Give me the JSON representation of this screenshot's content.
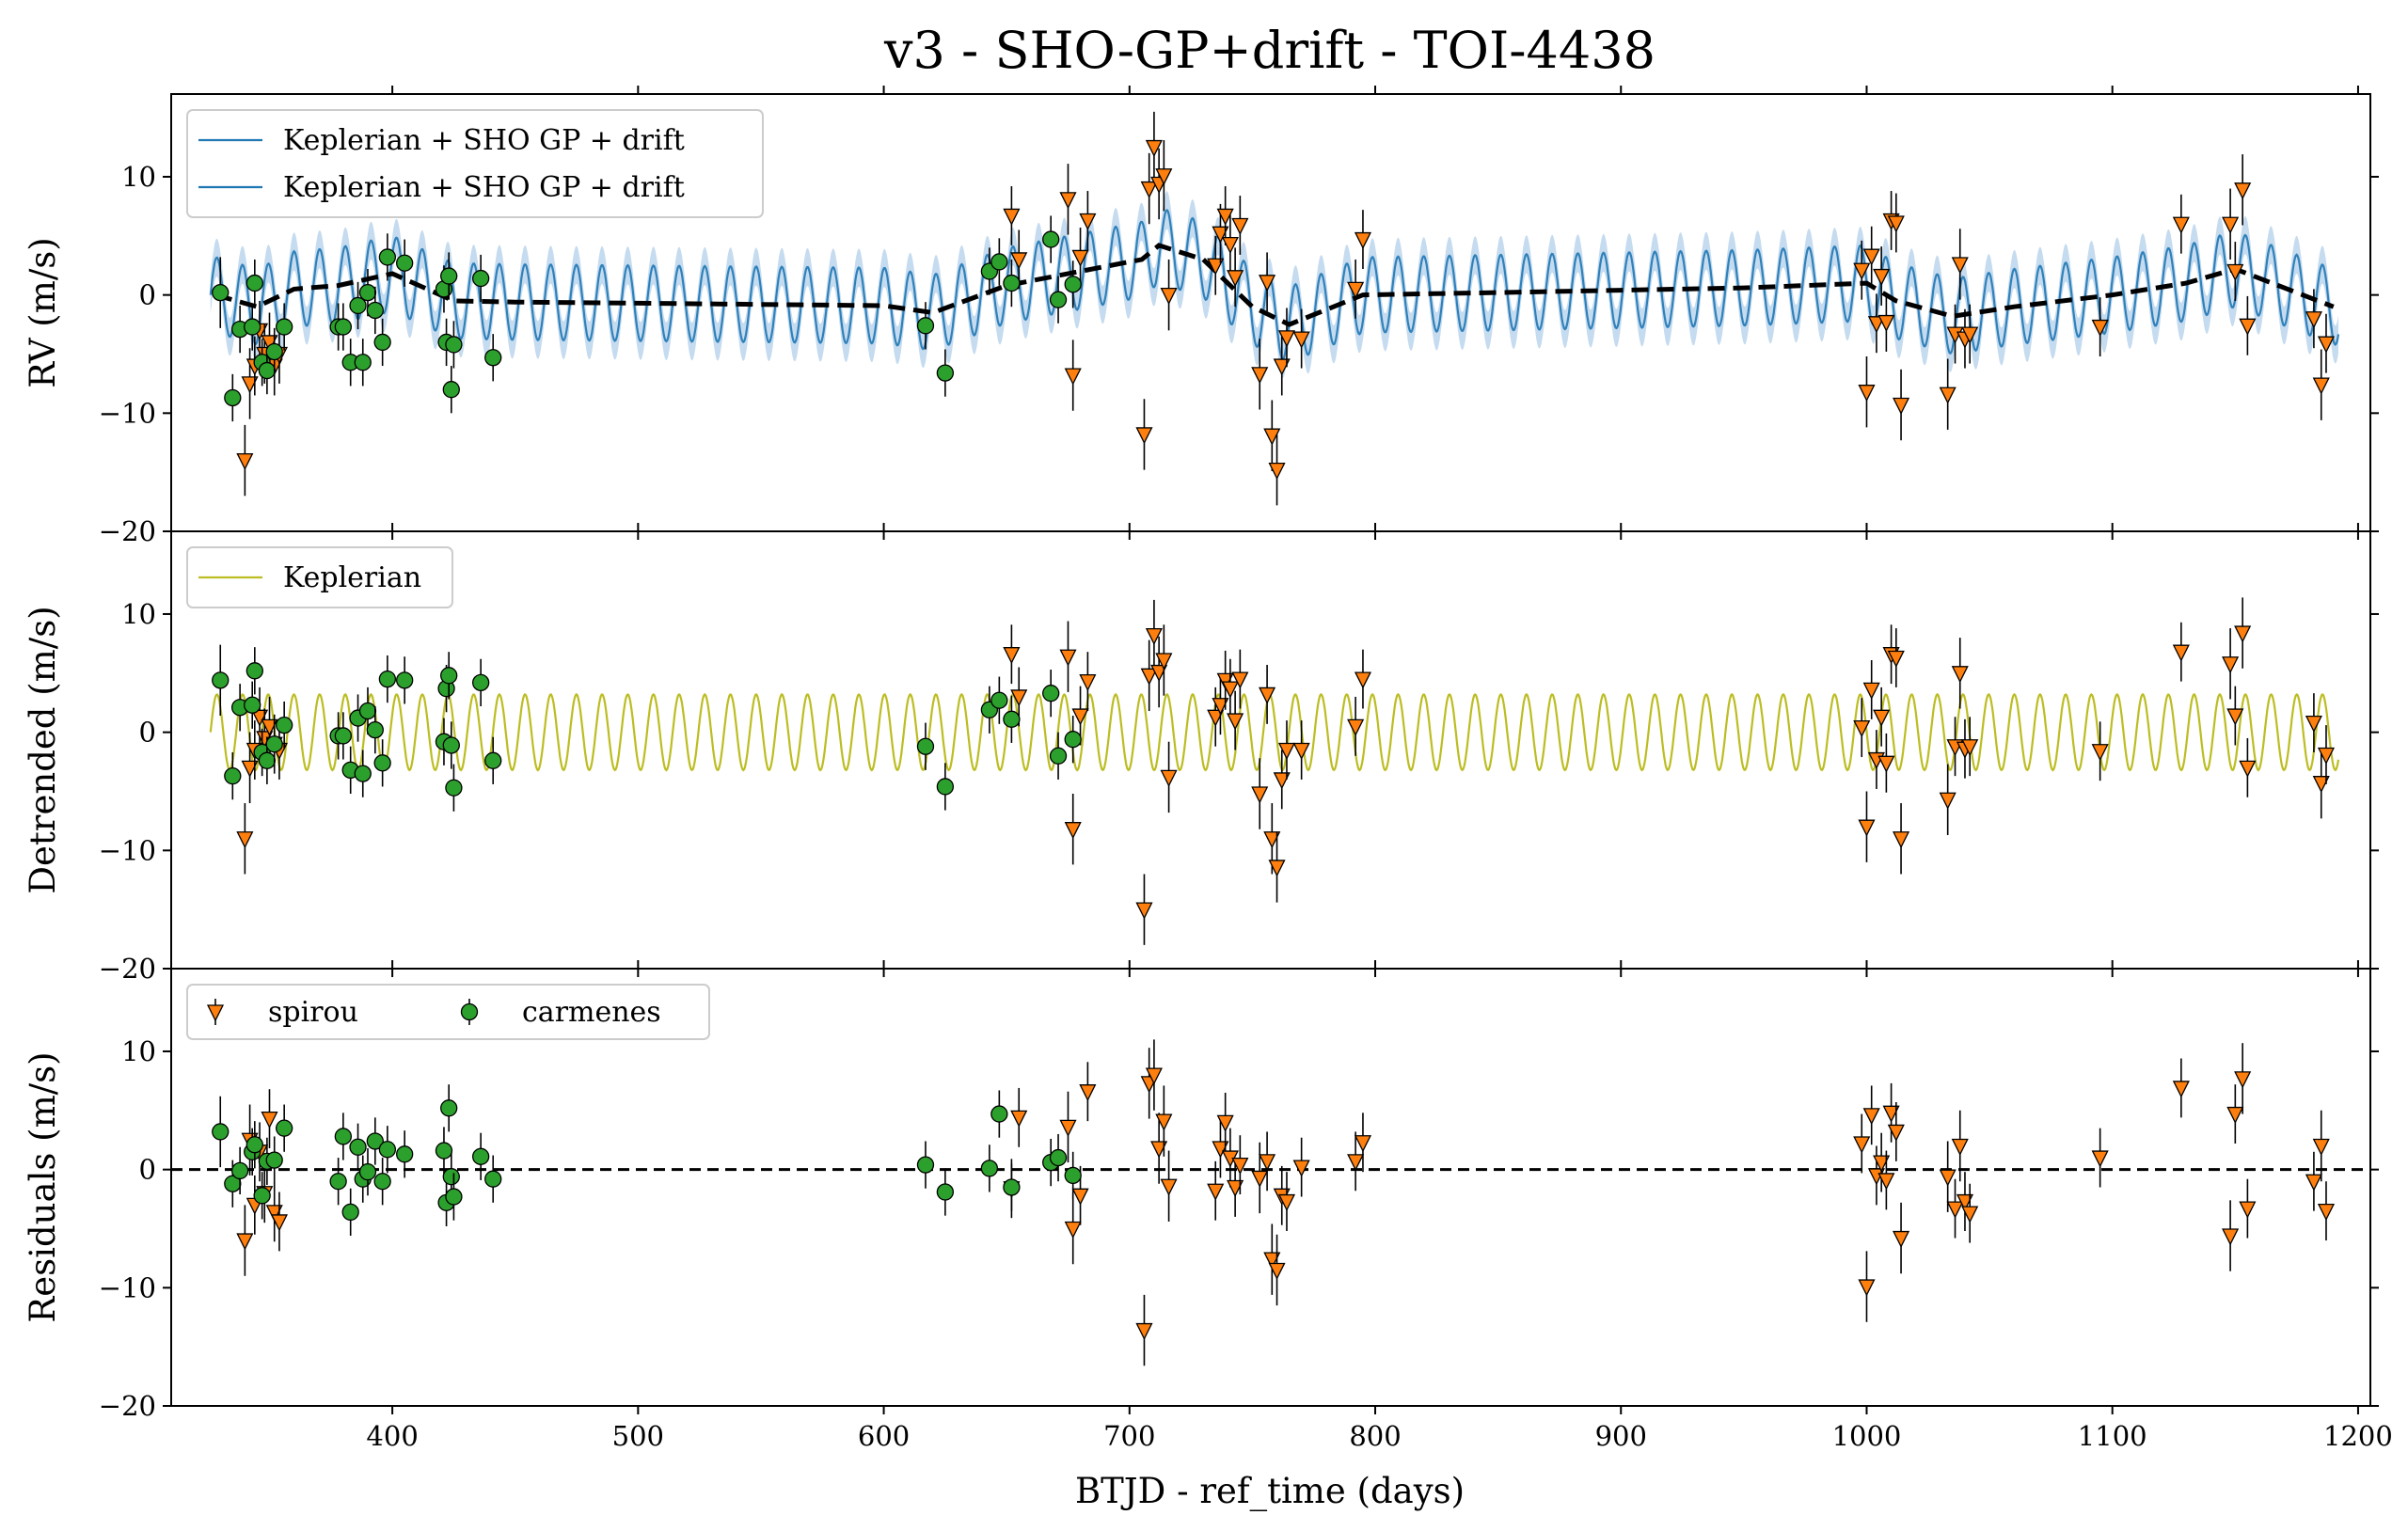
{
  "figure": {
    "title": "v3 - SHO-GP+drift - TOI-4438",
    "xlabel": "BTJD - ref_time (days)",
    "xlim": [
      310,
      1205
    ],
    "xticks": [
      400,
      500,
      600,
      700,
      800,
      900,
      1000,
      1100,
      1200
    ],
    "colors": {
      "spirou": "#ff7f0e",
      "carmenes": "#2ca02c",
      "gp_model": "#1f77b4",
      "gp_band": "#a6c8e6",
      "keplerian": "#bcbd22",
      "drift": "#000000"
    }
  },
  "chart_data": [
    {
      "type": "scatter",
      "panel": "rv",
      "ylabel": "RV (m/s)",
      "ylim": [
        -20,
        17
      ],
      "yticks": [
        -20,
        -10,
        0,
        10
      ],
      "legend": {
        "placement": "upper-left",
        "entries": [
          "Keplerian + SHO GP + drift",
          "Keplerian + SHO GP + drift"
        ]
      },
      "model_curve": {
        "period_days": 10.45,
        "amplitude": 3.2,
        "band_halfwidth": 1.6
      },
      "drift_curve": {
        "x": [
          328,
          345,
          360,
          378,
          400,
          425,
          450,
          500,
          550,
          600,
          620,
          650,
          680,
          705,
          712,
          730,
          750,
          765,
          795,
          850,
          900,
          950,
          1000,
          1012,
          1035,
          1060,
          1100,
          1130,
          1150,
          1165,
          1190
        ],
        "y": [
          0,
          -1,
          0.5,
          0.8,
          1.8,
          -0.5,
          -0.6,
          -0.7,
          -0.8,
          -0.9,
          -1.5,
          0.8,
          2.0,
          3.0,
          4.2,
          3.0,
          -1.0,
          -2.5,
          0.0,
          0.2,
          0.4,
          0.6,
          1.0,
          -0.5,
          -1.8,
          -1.0,
          0.0,
          1.0,
          2.2,
          1.0,
          -1.0
        ]
      },
      "series": [
        {
          "name": "spirou",
          "marker": "triangle-down",
          "x": [
            340,
            342,
            344,
            346,
            348,
            350,
            352,
            354,
            652,
            655,
            675,
            677,
            680,
            683,
            706,
            708,
            710,
            712,
            714,
            716,
            735,
            737,
            739,
            741,
            743,
            745,
            753,
            756,
            758,
            760,
            762,
            764,
            770,
            792,
            795,
            998,
            1000,
            1002,
            1004,
            1006,
            1008,
            1010,
            1012,
            1014,
            1033,
            1036,
            1038,
            1040,
            1042,
            1095,
            1128,
            1148,
            1150,
            1153,
            1155,
            1182,
            1185,
            1187
          ],
          "y": [
            -14,
            -7.5,
            -6,
            -3,
            -5,
            -4,
            -6,
            -5,
            6.7,
            3,
            8.1,
            -6.8,
            3.2,
            6.3,
            -11.8,
            9,
            12.5,
            9.4,
            10.1,
            0,
            2.5,
            5.2,
            6.7,
            4.3,
            1.5,
            5.9,
            -6.7,
            1.1,
            -11.9,
            -14.8,
            -6,
            -3.6,
            -3.7,
            0.5,
            4.7,
            2.1,
            -8.2,
            3.3,
            -2.4,
            1.6,
            -2.3,
            6.3,
            6.1,
            -9.3,
            -8.4,
            -3.3,
            2.6,
            -3.7,
            -3.3,
            -2.7,
            6,
            6,
            2,
            8.9,
            -2.6,
            -2,
            -7.6,
            -4.1
          ],
          "err": [
            3,
            3,
            2.5,
            2.5,
            2.5,
            2.5,
            2.5,
            2.5,
            2.5,
            2.5,
            3,
            3,
            2.5,
            2.5,
            3,
            3,
            3,
            3,
            3,
            3,
            2.5,
            2.5,
            2.5,
            2.5,
            2.5,
            2.5,
            3,
            2.5,
            3,
            3,
            2.5,
            2.5,
            2.5,
            2.5,
            2.5,
            2.5,
            3,
            2.5,
            2.5,
            2.5,
            2.5,
            2.5,
            2.5,
            3,
            3,
            2.5,
            3,
            2.5,
            2.5,
            2.5,
            2.5,
            3,
            2.5,
            3,
            2.5,
            2.5,
            3,
            2.5
          ]
        },
        {
          "name": "carmenes",
          "marker": "circle",
          "x": [
            330,
            335,
            338,
            343,
            344,
            347,
            349,
            352,
            356,
            378,
            380,
            383,
            386,
            388,
            390,
            393,
            396,
            398,
            405,
            421,
            422,
            423,
            424,
            425,
            436,
            441,
            617,
            625,
            643,
            647,
            652,
            668,
            671,
            677
          ],
          "y": [
            0.2,
            -8.7,
            -2.9,
            -2.7,
            1,
            -5.7,
            -6.4,
            -4.8,
            -2.7,
            -2.7,
            -2.7,
            -5.7,
            -0.9,
            -5.7,
            0.2,
            -1.3,
            -4,
            3.2,
            2.7,
            0.5,
            -4,
            1.6,
            -8,
            -4.2,
            1.4,
            -5.3,
            -2.6,
            -6.6,
            2,
            2.8,
            1,
            4.7,
            -0.4,
            0.9
          ],
          "err": [
            3,
            2,
            2,
            2,
            2,
            2,
            2,
            2,
            2,
            2,
            2,
            2,
            2,
            2,
            2,
            2,
            2,
            2,
            2,
            2,
            2,
            2,
            2,
            2,
            2,
            2,
            2,
            2,
            2,
            2,
            2,
            2,
            2,
            2
          ]
        }
      ]
    },
    {
      "type": "scatter",
      "panel": "detrended",
      "ylabel": "Detrended (m/s)",
      "ylim": [
        -20,
        17
      ],
      "yticks": [
        -20,
        -10,
        0,
        10
      ],
      "legend": {
        "placement": "upper-left",
        "entries": [
          "Keplerian"
        ]
      },
      "model_curve": {
        "period_days": 10.45,
        "amplitude": 3.2
      },
      "series": [
        {
          "name": "spirou",
          "marker": "triangle-down",
          "x": [
            340,
            342,
            344,
            346,
            348,
            350,
            352,
            354,
            652,
            655,
            675,
            677,
            680,
            683,
            706,
            708,
            710,
            712,
            714,
            716,
            735,
            737,
            739,
            741,
            743,
            745,
            753,
            756,
            758,
            760,
            762,
            764,
            770,
            792,
            795,
            998,
            1000,
            1002,
            1004,
            1006,
            1008,
            1010,
            1012,
            1014,
            1033,
            1036,
            1038,
            1040,
            1042,
            1095,
            1128,
            1148,
            1150,
            1153,
            1155,
            1182,
            1185,
            1187
          ],
          "y": [
            -9,
            -3,
            -1.5,
            1.3,
            -0.5,
            0.5,
            -1,
            -1.5,
            6.6,
            3,
            6.4,
            -8.2,
            1.4,
            4.3,
            -15,
            4.8,
            8.2,
            5.1,
            6.1,
            -3.8,
            1.3,
            2.3,
            4.4,
            3.7,
            1,
            4.5,
            -5.2,
            3.2,
            -9,
            -11.4,
            -4,
            -1.5,
            -1.5,
            0.5,
            4.5,
            0.4,
            -8,
            3.6,
            -2.3,
            1.3,
            -2.6,
            6.6,
            6.3,
            -9,
            -5.7,
            -1.2,
            5,
            -1.4,
            -1.2,
            -1.6,
            6.8,
            5.8,
            1.4,
            8.4,
            -3,
            0.8,
            -4.3,
            -1.9
          ],
          "err": [
            3,
            3,
            2.5,
            2.5,
            2.5,
            2.5,
            2.5,
            2.5,
            2.5,
            2.5,
            3,
            3,
            2.5,
            2.5,
            3,
            3,
            3,
            3,
            3,
            3,
            2.5,
            2.5,
            2.5,
            2.5,
            2.5,
            2.5,
            3,
            2.5,
            3,
            3,
            2.5,
            2.5,
            2.5,
            2.5,
            2.5,
            2.5,
            3,
            2.5,
            2.5,
            2.5,
            2.5,
            2.5,
            2.5,
            3,
            3,
            2.5,
            3,
            2.5,
            2.5,
            2.5,
            2.5,
            3,
            2.5,
            3,
            2.5,
            2.5,
            3,
            2.5
          ]
        },
        {
          "name": "carmenes",
          "marker": "circle",
          "x": [
            330,
            335,
            338,
            343,
            344,
            347,
            349,
            352,
            356,
            378,
            380,
            383,
            386,
            388,
            390,
            393,
            396,
            398,
            405,
            421,
            422,
            423,
            424,
            425,
            436,
            441,
            617,
            625,
            643,
            647,
            652,
            668,
            671,
            677
          ],
          "y": [
            4.4,
            -3.7,
            2.1,
            2.3,
            5.2,
            -1.7,
            -2.4,
            -1,
            0.6,
            -0.3,
            -0.3,
            -3.2,
            1.2,
            -3.5,
            1.8,
            0.2,
            -2.6,
            4.5,
            4.4,
            -0.8,
            3.7,
            4.8,
            -1.1,
            -4.7,
            4.2,
            -2.4,
            -1.2,
            -4.6,
            1.9,
            2.7,
            1.1,
            3.3,
            -2,
            -0.6
          ],
          "err": [
            3,
            2,
            2,
            2,
            2,
            2,
            2,
            2,
            2,
            2,
            2,
            2,
            2,
            2,
            2,
            2,
            2,
            2,
            2,
            2,
            2,
            2,
            2,
            2,
            2,
            2,
            2,
            2,
            2,
            2,
            2,
            2,
            2,
            2
          ]
        }
      ]
    },
    {
      "type": "scatter",
      "panel": "residuals",
      "ylabel": "Residuals (m/s)",
      "ylim": [
        -20,
        17
      ],
      "yticks": [
        -20,
        -10,
        0,
        10
      ],
      "legend": {
        "placement": "upper-left",
        "entries": [
          "spirou",
          "carmenes"
        ]
      },
      "reference_line_y": 0,
      "series": [
        {
          "name": "spirou",
          "marker": "triangle-down",
          "x": [
            340,
            342,
            344,
            346,
            348,
            350,
            352,
            354,
            652,
            655,
            675,
            677,
            680,
            683,
            706,
            708,
            710,
            712,
            714,
            716,
            735,
            737,
            739,
            741,
            743,
            745,
            753,
            756,
            758,
            760,
            762,
            764,
            770,
            792,
            795,
            998,
            1000,
            1002,
            1004,
            1006,
            1008,
            1010,
            1012,
            1014,
            1033,
            1036,
            1038,
            1040,
            1042,
            1095,
            1128,
            1148,
            1150,
            1153,
            1155,
            1182,
            1185,
            1187
          ],
          "y": [
            -6,
            2.5,
            -3,
            1.5,
            -2,
            4.3,
            -3.6,
            -4.4,
            -1.6,
            4.4,
            3.6,
            -5,
            -2.2,
            6.6,
            -13.6,
            7.3,
            8,
            1.8,
            4.1,
            -1.4,
            -1.8,
            1.8,
            4,
            1,
            -1.5,
            0.4,
            -0.7,
            0.7,
            -7.6,
            -8.5,
            -2.2,
            -2.7,
            0.2,
            0.7,
            2.3,
            2.2,
            -9.9,
            4.6,
            -0.5,
            0.6,
            -0.9,
            4.8,
            3.2,
            -5.8,
            -0.6,
            -3.3,
            2,
            -2.7,
            -3.7,
            1,
            6.9,
            -5.6,
            4.7,
            7.7,
            -3.3,
            -1,
            2,
            -3.5
          ],
          "err": [
            3,
            3,
            2.5,
            2.5,
            2.5,
            2.5,
            2.5,
            2.5,
            2.5,
            2.5,
            3,
            3,
            2.5,
            2.5,
            3,
            3,
            3,
            3,
            3,
            3,
            2.5,
            2.5,
            2.5,
            2.5,
            2.5,
            2.5,
            3,
            2.5,
            3,
            3,
            2.5,
            2.5,
            2.5,
            2.5,
            2.5,
            2.5,
            3,
            2.5,
            2.5,
            2.5,
            2.5,
            2.5,
            2.5,
            3,
            3,
            2.5,
            3,
            2.5,
            2.5,
            2.5,
            2.5,
            3,
            2.5,
            3,
            2.5,
            2.5,
            3,
            2.5
          ]
        },
        {
          "name": "carmenes",
          "marker": "circle",
          "x": [
            330,
            335,
            338,
            343,
            344,
            347,
            349,
            352,
            356,
            378,
            380,
            383,
            386,
            388,
            390,
            393,
            396,
            398,
            405,
            421,
            422,
            423,
            424,
            425,
            436,
            441,
            617,
            625,
            643,
            647,
            652,
            668,
            671,
            677
          ],
          "y": [
            3.2,
            -1.2,
            -0.1,
            1.5,
            2.1,
            -2.2,
            0.7,
            0.8,
            3.5,
            -1,
            2.8,
            -3.6,
            1.9,
            -0.8,
            -0.2,
            2.4,
            -1,
            1.7,
            1.3,
            1.6,
            -2.8,
            5.2,
            -0.6,
            -2.3,
            1.1,
            -0.8,
            0.4,
            -1.9,
            0.1,
            4.7,
            -1.5,
            0.6,
            1,
            -0.5
          ],
          "err": [
            3,
            2,
            2,
            2,
            2,
            2,
            2,
            2,
            2,
            2,
            2,
            2,
            2,
            2,
            2,
            2,
            2,
            2,
            2,
            2,
            2,
            2,
            2,
            2,
            2,
            2,
            2,
            2,
            2,
            2,
            2,
            2,
            2,
            2
          ]
        }
      ]
    }
  ]
}
